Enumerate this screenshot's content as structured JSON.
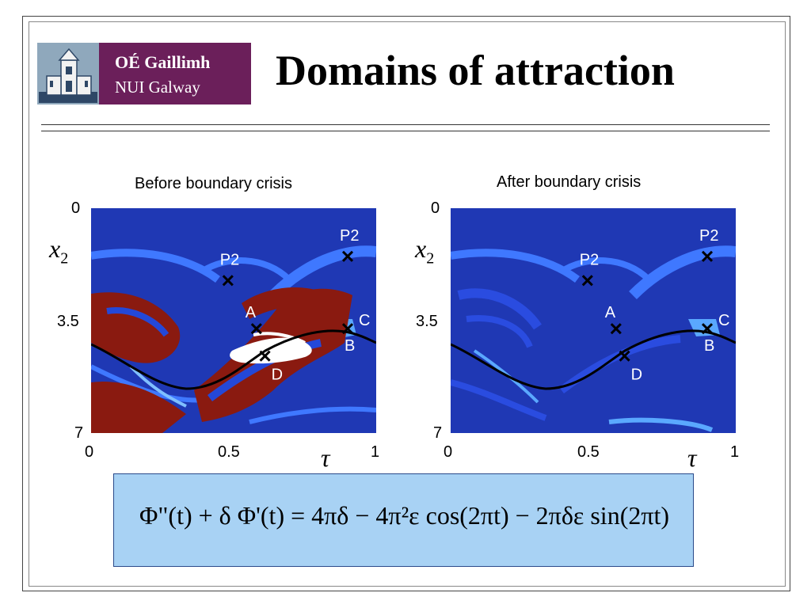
{
  "logo": {
    "line1": "OÉ Gaillimh",
    "line2": "NUI Galway"
  },
  "slide_title": "Domains of attraction",
  "panels": [
    {
      "subtitle": "Before boundary crisis",
      "y_ticks": [
        "0",
        "3.5",
        "7"
      ],
      "x_ticks": [
        "0",
        "0.5",
        "1"
      ],
      "y_axis_label": "x",
      "y_axis_sub": "2",
      "x_axis_label": "τ",
      "points": [
        {
          "label": "P2",
          "tau": 0.48,
          "x2": 2.25
        },
        {
          "label": "P2",
          "tau": 0.9,
          "x2": 1.5
        },
        {
          "label": "A",
          "tau": 0.58,
          "x2": 3.75
        },
        {
          "label": "C",
          "tau": 0.9,
          "x2": 3.75
        },
        {
          "label": "B",
          "tau": 0.9,
          "x2": 3.75
        },
        {
          "label": "D",
          "tau": 0.61,
          "x2": 4.6
        }
      ]
    },
    {
      "subtitle": "After boundary crisis",
      "y_ticks": [
        "0",
        "3.5",
        "7"
      ],
      "x_ticks": [
        "0",
        "0.5",
        "1"
      ],
      "y_axis_label": "x",
      "y_axis_sub": "2",
      "x_axis_label": "τ",
      "points": [
        {
          "label": "P2",
          "tau": 0.48,
          "x2": 2.25
        },
        {
          "label": "P2",
          "tau": 0.9,
          "x2": 1.5
        },
        {
          "label": "A",
          "tau": 0.58,
          "x2": 3.75
        },
        {
          "label": "C",
          "tau": 0.9,
          "x2": 3.75
        },
        {
          "label": "B",
          "tau": 0.9,
          "x2": 3.75
        },
        {
          "label": "D",
          "tau": 0.61,
          "x2": 4.6
        }
      ]
    }
  ],
  "formula": "Φ\"(t) + δ Φ'(t) = 4πδ − 4π²ε cos(2πt) − 2πδε sin(2πt)",
  "colors": {
    "logo_bg": "#6b1f5a",
    "plot_bg": "#1f38b4",
    "formula_bg": "#a8d2f4",
    "basin_red": "#8a1a10"
  }
}
